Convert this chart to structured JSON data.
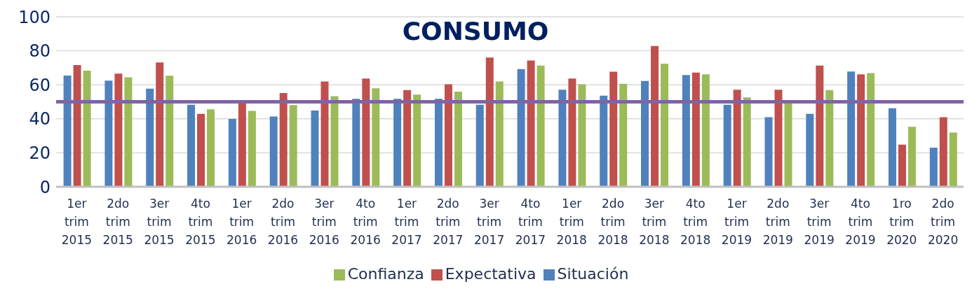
{
  "chart_data": {
    "type": "bar",
    "title": "CONSUMO",
    "categories": [
      "1er trim 2015",
      "2do trim 2015",
      "3er trim 2015",
      "4to trim 2015",
      "1er trim 2016",
      "2do trim 2016",
      "3er trim 2016",
      "4to trim 2016",
      "1er trim 2017",
      "2do trim 2017",
      "3er trim 2017",
      "4to trim 2017",
      "1er trim 2018",
      "2do trim 2018",
      "3er trim 2018",
      "4to trim 2018",
      "1er trim 2019",
      "2do trim 2019",
      "3er trim 2019",
      "4to trim 2019",
      "1ro trim 2020",
      "2do trim 2020"
    ],
    "series": [
      {
        "name": "Situación",
        "color": "#4f81bd",
        "values": [
          65.4,
          62.5,
          57.7,
          48.3,
          39.9,
          41.4,
          44.9,
          51.7,
          51.7,
          51.7,
          48.2,
          69.2,
          57.1,
          53.6,
          62.2,
          65.7,
          48.2,
          40.9,
          42.9,
          67.8,
          46.2,
          23.0
        ]
      },
      {
        "name": "Expectativa",
        "color": "#c0504d",
        "values": [
          71.6,
          66.6,
          73.1,
          42.9,
          49.0,
          55.1,
          61.9,
          63.7,
          56.9,
          60.3,
          76.0,
          74.3,
          63.7,
          67.7,
          82.8,
          67.2,
          57.1,
          57.1,
          71.3,
          66.2,
          24.8,
          40.9
        ]
      },
      {
        "name": "Confianza",
        "color": "#9bbb59",
        "values": [
          68.3,
          64.4,
          65.3,
          45.6,
          44.6,
          48.0,
          53.3,
          57.9,
          54.2,
          56.0,
          61.9,
          71.3,
          60.3,
          60.6,
          72.4,
          66.2,
          52.6,
          49.0,
          56.9,
          66.9,
          35.3,
          31.9
        ]
      }
    ],
    "ylim": [
      0,
      100
    ],
    "yticks": [
      0,
      20,
      40,
      60,
      80,
      100
    ],
    "grid": "y",
    "legend": "bottom",
    "ref_lines": [
      {
        "axis": "y",
        "value": 50,
        "color": "#8064a2"
      }
    ]
  }
}
